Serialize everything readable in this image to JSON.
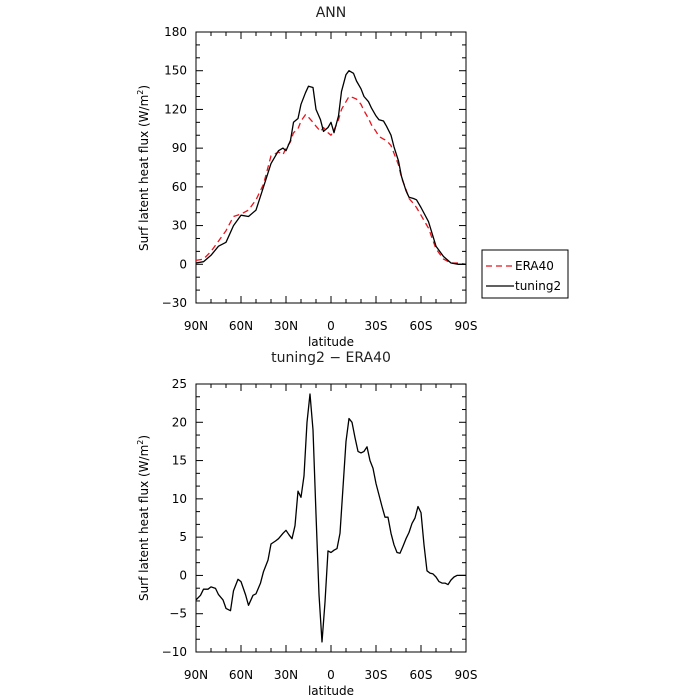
{
  "chart_data": [
    {
      "type": "line",
      "title": "ANN",
      "xlabel": "latitude",
      "ylabel": "Surf latent heat flux (W/m",
      "ylabel_sup": "2",
      "ylabel_close": ")",
      "xlim": [
        90,
        -90
      ],
      "ylim": [
        -30,
        180
      ],
      "xticks": [
        90,
        60,
        30,
        0,
        -30,
        -60,
        -90
      ],
      "xtick_labels": [
        "90N",
        "60N",
        "30N",
        "0",
        "30S",
        "60S",
        "90S"
      ],
      "yticks": [
        -30,
        0,
        30,
        60,
        90,
        120,
        150,
        180
      ],
      "ytick_labels": [
        "−30",
        "0",
        "30",
        "60",
        "90",
        "120",
        "150",
        "180"
      ],
      "legend": {
        "placement": "right",
        "entries": [
          "ERA40",
          "tuning2"
        ]
      },
      "series": [
        {
          "name": "ERA40",
          "color": "#e8141e",
          "dash": "6,4",
          "x": [
            90,
            85,
            80,
            75,
            70,
            65,
            60,
            55,
            50,
            45,
            40,
            35,
            32,
            30,
            27,
            25,
            22,
            20,
            17,
            15,
            12,
            10,
            7,
            5,
            2,
            0,
            -2,
            -5,
            -7,
            -10,
            -12,
            -15,
            -17,
            -20,
            -22,
            -25,
            -27,
            -30,
            -32,
            -35,
            -37,
            -40,
            -42,
            -45,
            -47,
            -50,
            -52,
            -55,
            -57,
            -60,
            -65,
            -70,
            -75,
            -80,
            -85,
            -90
          ],
          "y": [
            3,
            4,
            10,
            18,
            26,
            37,
            39,
            42,
            50,
            62,
            84,
            87,
            85,
            90,
            95,
            102,
            105,
            111,
            116,
            114,
            110,
            107,
            103,
            106,
            102,
            100,
            104,
            112,
            120,
            126,
            130,
            129,
            128,
            124,
            119,
            113,
            108,
            103,
            99,
            97,
            96,
            92,
            86,
            77,
            67,
            58,
            51,
            47,
            44,
            38,
            28,
            12,
            4,
            1,
            1,
            0
          ]
        },
        {
          "name": "tuning2",
          "color": "#000000",
          "dash": "",
          "x": [
            90,
            85,
            80,
            75,
            70,
            65,
            60,
            55,
            50,
            45,
            40,
            35,
            32,
            30,
            27,
            25,
            22,
            20,
            17,
            15,
            12,
            10,
            7,
            5,
            2,
            0,
            -2,
            -5,
            -7,
            -10,
            -12,
            -15,
            -17,
            -20,
            -22,
            -25,
            -27,
            -30,
            -32,
            -35,
            -37,
            -40,
            -42,
            -45,
            -47,
            -50,
            -52,
            -55,
            -57,
            -60,
            -65,
            -70,
            -75,
            -80,
            -85,
            -90
          ],
          "y": [
            1,
            2,
            7,
            14,
            17,
            30,
            38,
            37,
            42,
            60,
            78,
            88,
            90,
            88,
            96,
            110,
            113,
            124,
            133,
            138,
            137,
            120,
            112,
            103,
            106,
            110,
            102,
            115,
            134,
            147,
            150,
            148,
            142,
            136,
            130,
            126,
            121,
            115,
            112,
            111,
            107,
            100,
            91,
            80,
            68,
            57,
            52,
            51,
            50,
            44,
            33,
            14,
            6,
            1,
            0,
            0
          ]
        }
      ]
    },
    {
      "type": "line",
      "title": "tuning2 − ERA40",
      "xlabel": "latitude",
      "ylabel": "Surf latent heat flux (W/m",
      "ylabel_sup": "2",
      "ylabel_close": ")",
      "xlim": [
        90,
        -90
      ],
      "ylim": [
        -10,
        25
      ],
      "xticks": [
        90,
        60,
        30,
        0,
        -30,
        -60,
        -90
      ],
      "xtick_labels": [
        "90N",
        "60N",
        "30N",
        "0",
        "30S",
        "60S",
        "90S"
      ],
      "yticks": [
        -10,
        -5,
        0,
        5,
        10,
        15,
        20,
        25
      ],
      "ytick_labels": [
        "−10",
        "−5",
        "0",
        "5",
        "10",
        "15",
        "20",
        "25"
      ],
      "series": [
        {
          "color": "#000000",
          "dash": "",
          "x": [
            90,
            87,
            85,
            82,
            80,
            77,
            75,
            72,
            70,
            67,
            65,
            62,
            60,
            57,
            55,
            52,
            50,
            47,
            45,
            42,
            40,
            37,
            35,
            32,
            30,
            28,
            26,
            24,
            22,
            20,
            18,
            16,
            14,
            12,
            10,
            8,
            6,
            4,
            2,
            0,
            -2,
            -4,
            -6,
            -8,
            -10,
            -12,
            -14,
            -16,
            -18,
            -20,
            -22,
            -24,
            -26,
            -28,
            -30,
            -32,
            -34,
            -36,
            -38,
            -40,
            -42,
            -44,
            -46,
            -48,
            -50,
            -52,
            -54,
            -56,
            -58,
            -60,
            -62,
            -64,
            -66,
            -68,
            -70,
            -72,
            -74,
            -76,
            -78,
            -80,
            -82,
            -84,
            -86,
            -88,
            -90
          ],
          "y": [
            -3.2,
            -2.6,
            -1.8,
            -1.8,
            -1.5,
            -1.7,
            -2.5,
            -3.2,
            -4.3,
            -4.6,
            -2.0,
            -0.5,
            -0.8,
            -2.5,
            -3.9,
            -2.6,
            -2.4,
            -1.0,
            0.5,
            2.0,
            4.1,
            4.5,
            4.8,
            5.5,
            5.9,
            5.3,
            4.8,
            6.5,
            11.0,
            10.2,
            13.0,
            20.0,
            23.7,
            19.0,
            8.0,
            -2.5,
            -8.7,
            -3.5,
            3.2,
            3.0,
            3.3,
            3.5,
            5.5,
            11.5,
            17.5,
            20.5,
            20.0,
            18.0,
            16.2,
            16.0,
            16.2,
            16.8,
            15.0,
            14.0,
            12.0,
            10.5,
            9.0,
            7.6,
            7.6,
            5.5,
            4.0,
            3.0,
            2.9,
            3.8,
            4.8,
            5.6,
            6.8,
            7.5,
            9.0,
            8.2,
            4.0,
            0.6,
            0.3,
            0.2,
            -0.2,
            -0.8,
            -1.0,
            -1.0,
            -1.2,
            -0.6,
            -0.2,
            0.0,
            0.0,
            0.0,
            0.0
          ]
        }
      ]
    }
  ]
}
